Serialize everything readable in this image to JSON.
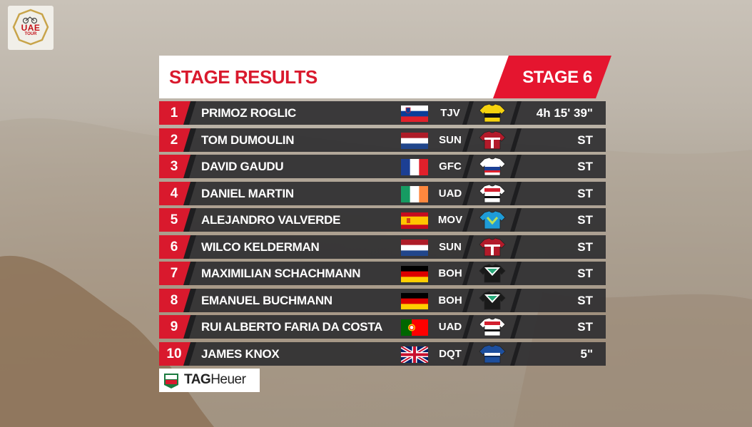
{
  "logo": {
    "text": "UAE",
    "sub": "TOUR"
  },
  "header": {
    "title": "STAGE RESULTS",
    "stage": "STAGE 6"
  },
  "rows": [
    {
      "pos": "1",
      "name": "PRIMOZ ROGLIC",
      "team": "TJV",
      "time": "4h 15' 39\"",
      "flag": "slovenia",
      "jersey": "jumbo-visma-yellow"
    },
    {
      "pos": "2",
      "name": "TOM DUMOULIN",
      "team": "SUN",
      "time": "ST",
      "flag": "netherlands",
      "jersey": "sunweb-red"
    },
    {
      "pos": "3",
      "name": "DAVID GAUDU",
      "team": "GFC",
      "time": "ST",
      "flag": "france",
      "jersey": "groupama-fdj"
    },
    {
      "pos": "4",
      "name": "DANIEL MARTIN",
      "team": "UAD",
      "time": "ST",
      "flag": "ireland",
      "jersey": "uae-emirates"
    },
    {
      "pos": "5",
      "name": "ALEJANDRO VALVERDE",
      "team": "MOV",
      "time": "ST",
      "flag": "spain",
      "jersey": "movistar-blue"
    },
    {
      "pos": "6",
      "name": "WILCO KELDERMAN",
      "team": "SUN",
      "time": "ST",
      "flag": "netherlands",
      "jersey": "sunweb-red"
    },
    {
      "pos": "7",
      "name": "MAXIMILIAN SCHACHMANN",
      "team": "BOH",
      "time": "ST",
      "flag": "germany",
      "jersey": "bora-hansgrohe"
    },
    {
      "pos": "8",
      "name": "EMANUEL BUCHMANN",
      "team": "BOH",
      "time": "ST",
      "flag": "germany",
      "jersey": "bora-hansgrohe"
    },
    {
      "pos": "9",
      "name": "RUI ALBERTO FARIA DA COSTA",
      "team": "UAD",
      "time": "ST",
      "flag": "portugal",
      "jersey": "uae-emirates"
    },
    {
      "pos": "10",
      "name": "JAMES KNOX",
      "team": "DQT",
      "time": "5\"",
      "flag": "united-kingdom",
      "jersey": "deceuninck-quickstep"
    }
  ],
  "sponsor": {
    "badge": "TAG",
    "brand_bold": "TAG",
    "brand_light": "Heuer"
  },
  "colors": {
    "accent": "#d9192d",
    "row_dark": "#2f2f31",
    "row_mid": "#3a3a3c",
    "white": "#ffffff"
  }
}
